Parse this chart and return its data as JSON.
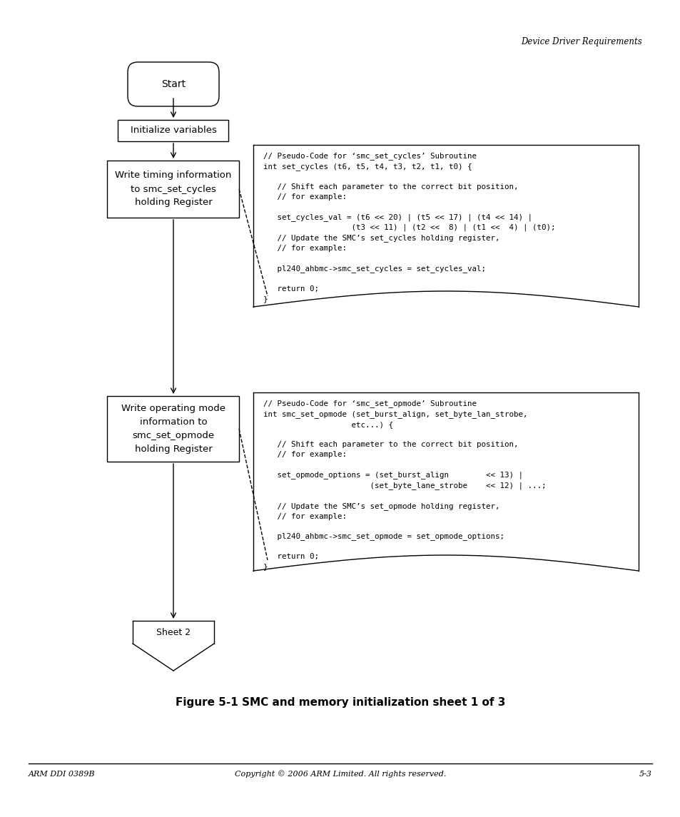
{
  "title_header": "Device Driver Requirements",
  "figure_caption": "Figure 5-1 SMC and memory initialization sheet 1 of 3",
  "footer_left": "ARM DDI 0389B",
  "footer_center": "Copyright © 2006 ARM Limited. All rights reserved.",
  "footer_right": "5-3",
  "bg_color": "#ffffff",
  "start_label": "Start",
  "init_label": "Initialize variables",
  "box1_label": "Write timing information\nto smc_set_cycles\nholding Register",
  "box2_label": "Write operating mode\ninformation to\nsmc_set_opmode\nholding Register",
  "sheet2_label": "Sheet 2",
  "code1_lines": [
    "// Pseudo-Code for ‘smc_set_cycles’ Subroutine",
    "int set_cycles (t6, t5, t4, t3, t2, t1, t0) {",
    "",
    "   // Shift each parameter to the correct bit position,",
    "   // for example:",
    "",
    "   set_cycles_val = (t6 << 20) | (t5 << 17) | (t4 << 14) |",
    "                   (t3 << 11) | (t2 <<  8) | (t1 <<  4) | (t0);",
    "   // Update the SMC’s set_cycles holding register,",
    "   // for example:",
    "",
    "   pl240_ahbmc->smc_set_cycles = set_cycles_val;",
    "",
    "   return 0;",
    "}"
  ],
  "code2_lines": [
    "// Pseudo-Code for ‘smc_set_opmode’ Subroutine",
    "int smc_set_opmode (set_burst_align, set_byte_lan_strobe,",
    "                   etc...) {",
    "",
    "   // Shift each parameter to the correct bit position,",
    "   // for example:",
    "",
    "   set_opmode_options = (set_burst_align        << 13) |",
    "                       (set_byte_lane_strobe    << 12) | ...;",
    "",
    "   // Update the SMC’s set_opmode holding register,",
    "   // for example:",
    "",
    "   pl240_ahbmc->smc_set_opmode = set_opmode_options;",
    "",
    "   return 0;",
    "}"
  ]
}
